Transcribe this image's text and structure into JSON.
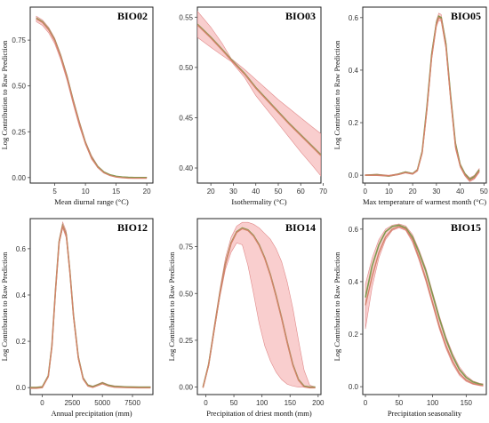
{
  "ylabel": "Log Contribution to Raw Prediction",
  "colors": {
    "band": "#f4a6a6",
    "curve_brown": "#d4826a",
    "curve_green": "#7f9a4e"
  },
  "chart_data": [
    {
      "type": "line",
      "title": "BIO02",
      "xlabel": "Mean diurnal range (°C)",
      "ylabel": "Log Contribution to Raw Prediction",
      "xlim": [
        1,
        21
      ],
      "ylim": [
        -0.03,
        0.93
      ],
      "xticks": [
        5,
        10,
        15,
        20
      ],
      "xtick_labels": [
        "5",
        "10",
        "15",
        "20"
      ],
      "yticks": [
        0,
        0.25,
        0.5,
        0.75
      ],
      "ytick_labels": [
        "0.00",
        "0.25",
        "0.50",
        "0.75"
      ],
      "series": [
        {
          "x": [
            2,
            3,
            4,
            5,
            6,
            7,
            8,
            9,
            10,
            11,
            12,
            13,
            14,
            15,
            16,
            17,
            18,
            19,
            20
          ],
          "values": [
            0.87,
            0.85,
            0.81,
            0.75,
            0.66,
            0.55,
            0.42,
            0.3,
            0.19,
            0.11,
            0.06,
            0.03,
            0.015,
            0.007,
            0.003,
            0.001,
            0,
            0,
            0
          ]
        }
      ],
      "band_upper": [
        0.88,
        0.86,
        0.82,
        0.76,
        0.67,
        0.56,
        0.43,
        0.31,
        0.2,
        0.12,
        0.065,
        0.033,
        0.017,
        0.008,
        0.004,
        0.002,
        0.001,
        0.001,
        0.001
      ],
      "band_lower": [
        0.85,
        0.83,
        0.79,
        0.73,
        0.64,
        0.53,
        0.4,
        0.28,
        0.18,
        0.1,
        0.055,
        0.027,
        0.013,
        0.006,
        0.002,
        0.001,
        0,
        0,
        0
      ]
    },
    {
      "type": "line",
      "title": "BIO03",
      "xlabel": "Isothermality (°C)",
      "ylabel": "",
      "xlim": [
        14,
        69
      ],
      "ylim": [
        0.385,
        0.56
      ],
      "xticks": [
        20,
        30,
        40,
        50,
        60,
        70
      ],
      "xtick_labels": [
        "20",
        "30",
        "40",
        "50",
        "60",
        "70"
      ],
      "yticks": [
        0.4,
        0.45,
        0.5,
        0.55
      ],
      "ytick_labels": [
        "0.40",
        "0.45",
        "0.50",
        "0.55"
      ],
      "series": [
        {
          "x": [
            14,
            20,
            25,
            29,
            35,
            40,
            45,
            50,
            55,
            60,
            65,
            69
          ],
          "values": [
            0.543,
            0.53,
            0.518,
            0.508,
            0.494,
            0.48,
            0.468,
            0.456,
            0.444,
            0.433,
            0.422,
            0.413
          ]
        }
      ],
      "band_upper": [
        0.556,
        0.54,
        0.524,
        0.509,
        0.498,
        0.488,
        0.478,
        0.468,
        0.459,
        0.45,
        0.441,
        0.434
      ],
      "band_lower": [
        0.53,
        0.52,
        0.512,
        0.506,
        0.49,
        0.472,
        0.458,
        0.444,
        0.43,
        0.416,
        0.403,
        0.392
      ]
    },
    {
      "type": "line",
      "title": "BIO05",
      "xlabel": "Max temperature of warmest month (°C)",
      "ylabel": "Log Contribution to Raw Prediction",
      "xlim": [
        -1,
        51
      ],
      "ylim": [
        -0.03,
        0.64
      ],
      "xticks": [
        0,
        10,
        20,
        30,
        40,
        50
      ],
      "xtick_labels": [
        "0",
        "10",
        "20",
        "30",
        "40",
        "50"
      ],
      "yticks": [
        0,
        0.2,
        0.4,
        0.6
      ],
      "ytick_labels": [
        "0.0",
        "0.2",
        "0.4",
        "0.6"
      ],
      "series": [
        {
          "x": [
            0,
            5,
            10,
            14,
            17,
            20,
            22,
            24,
            26,
            28,
            30,
            31,
            32,
            34,
            36,
            38,
            40,
            42,
            44,
            46,
            48
          ],
          "values": [
            0,
            0.002,
            -0.003,
            0.004,
            0.012,
            0.006,
            0.02,
            0.09,
            0.26,
            0.46,
            0.58,
            0.605,
            0.6,
            0.5,
            0.3,
            0.12,
            0.04,
            0.005,
            -0.015,
            -0.005,
            0.02
          ]
        },
        {
          "x": [
            0,
            5,
            10,
            14,
            17,
            20,
            22,
            24,
            26,
            28,
            30,
            31,
            32,
            34,
            36,
            38,
            40,
            42,
            44,
            46,
            48
          ],
          "values": [
            0,
            0,
            -0.002,
            0.003,
            0.01,
            0.005,
            0.018,
            0.085,
            0.25,
            0.45,
            0.575,
            0.6,
            0.595,
            0.49,
            0.29,
            0.11,
            0.035,
            0,
            -0.02,
            -0.01,
            0.015
          ]
        }
      ],
      "band_upper": [
        0.002,
        0.004,
        0,
        0.006,
        0.014,
        0.008,
        0.023,
        0.095,
        0.27,
        0.47,
        0.59,
        0.617,
        0.612,
        0.51,
        0.31,
        0.13,
        0.045,
        0.008,
        -0.01,
        0,
        0.025
      ],
      "band_lower": [
        -0.002,
        -0.002,
        -0.005,
        0.001,
        0.008,
        0.003,
        0.015,
        0.08,
        0.24,
        0.44,
        0.565,
        0.59,
        0.585,
        0.48,
        0.28,
        0.1,
        0.03,
        -0.003,
        -0.025,
        -0.015,
        0.01
      ]
    },
    {
      "type": "line",
      "title": "BIO12",
      "xlabel": "Annual precipitation (mm)",
      "ylabel": "Log Contribution to Raw Prediction",
      "xlim": [
        -1000,
        9200
      ],
      "ylim": [
        -0.03,
        0.73
      ],
      "xticks": [
        0,
        2500,
        5000,
        7500
      ],
      "xtick_labels": [
        "0",
        "2500",
        "5000",
        "7500"
      ],
      "yticks": [
        0,
        0.2,
        0.4,
        0.6
      ],
      "ytick_labels": [
        "0.0",
        "0.2",
        "0.4",
        "0.6"
      ],
      "series": [
        {
          "x": [
            -1000,
            -500,
            0,
            500,
            800,
            1100,
            1400,
            1700,
            2000,
            2300,
            2600,
            3000,
            3400,
            3800,
            4200,
            4600,
            5000,
            5500,
            6000,
            7000,
            8000,
            9000
          ],
          "values": [
            0,
            0,
            0.003,
            0.05,
            0.18,
            0.42,
            0.63,
            0.7,
            0.66,
            0.5,
            0.31,
            0.13,
            0.04,
            0.01,
            0.004,
            0.012,
            0.02,
            0.01,
            0.005,
            0.003,
            0.002,
            0.002
          ]
        }
      ],
      "band_upper": [
        0.003,
        0.003,
        0.006,
        0.055,
        0.19,
        0.43,
        0.64,
        0.715,
        0.675,
        0.515,
        0.32,
        0.14,
        0.045,
        0.013,
        0.007,
        0.015,
        0.024,
        0.013,
        0.008,
        0.005,
        0.004,
        0.004
      ],
      "band_lower": [
        -0.003,
        -0.003,
        0,
        0.045,
        0.17,
        0.41,
        0.62,
        0.69,
        0.645,
        0.49,
        0.3,
        0.12,
        0.035,
        0.007,
        0.001,
        0.009,
        0.016,
        0.007,
        0.002,
        0.001,
        0,
        0
      ]
    },
    {
      "type": "line",
      "title": "BIO14",
      "xlabel": "Precipitation of driest month (mm)",
      "ylabel": "Log Contribution to Raw Prediction",
      "xlim": [
        -15,
        205
      ],
      "ylim": [
        -0.04,
        0.9
      ],
      "xticks": [
        0,
        50,
        100,
        150,
        200
      ],
      "xtick_labels": [
        "0",
        "50",
        "100",
        "150",
        "200"
      ],
      "yticks": [
        0,
        0.25,
        0.5,
        0.75
      ],
      "ytick_labels": [
        "0.00",
        "0.25",
        "0.50",
        "0.75"
      ],
      "series": [
        {
          "x": [
            -5,
            5,
            15,
            25,
            35,
            45,
            55,
            65,
            75,
            85,
            95,
            105,
            115,
            125,
            135,
            145,
            155,
            165,
            175,
            185,
            195
          ],
          "values": [
            0,
            0.12,
            0.31,
            0.5,
            0.66,
            0.77,
            0.83,
            0.85,
            0.84,
            0.81,
            0.76,
            0.69,
            0.6,
            0.49,
            0.37,
            0.24,
            0.12,
            0.04,
            0.005,
            0,
            0
          ]
        }
      ],
      "band_upper": [
        0.002,
        0.13,
        0.33,
        0.52,
        0.69,
        0.8,
        0.86,
        0.88,
        0.88,
        0.87,
        0.85,
        0.82,
        0.79,
        0.74,
        0.67,
        0.56,
        0.42,
        0.25,
        0.09,
        0.01,
        0
      ],
      "band_lower": [
        0,
        0.11,
        0.3,
        0.48,
        0.63,
        0.72,
        0.77,
        0.76,
        0.65,
        0.5,
        0.34,
        0.22,
        0.14,
        0.08,
        0.04,
        0.015,
        0.005,
        0,
        0,
        0,
        0
      ]
    },
    {
      "type": "line",
      "title": "BIO15",
      "xlabel": "Precipitation seasonality",
      "ylabel": "Log Contribution to Raw Prediction",
      "xlim": [
        -4,
        180
      ],
      "ylim": [
        -0.03,
        0.64
      ],
      "xticks": [
        0,
        50,
        100,
        150
      ],
      "xtick_labels": [
        "0",
        "50",
        "100",
        "150"
      ],
      "yticks": [
        0,
        0.2,
        0.4,
        0.6
      ],
      "ytick_labels": [
        "0.0",
        "0.2",
        "0.4",
        "0.6"
      ],
      "series": [
        {
          "x": [
            0,
            10,
            20,
            30,
            40,
            50,
            60,
            70,
            80,
            90,
            100,
            110,
            120,
            130,
            140,
            150,
            160,
            170,
            175
          ],
          "values": [
            0.34,
            0.46,
            0.54,
            0.59,
            0.61,
            0.615,
            0.605,
            0.57,
            0.51,
            0.44,
            0.35,
            0.26,
            0.18,
            0.115,
            0.065,
            0.035,
            0.018,
            0.01,
            0.008
          ]
        },
        {
          "x": [
            0,
            10,
            20,
            30,
            40,
            50,
            60,
            70,
            80,
            90,
            100,
            110,
            120,
            130,
            140,
            150,
            160,
            170,
            175
          ],
          "values": [
            0.31,
            0.42,
            0.51,
            0.57,
            0.6,
            0.61,
            0.6,
            0.56,
            0.49,
            0.41,
            0.32,
            0.23,
            0.155,
            0.095,
            0.05,
            0.025,
            0.012,
            0.006,
            0.004
          ]
        }
      ],
      "band_upper": [
        0.39,
        0.49,
        0.56,
        0.6,
        0.615,
        0.62,
        0.612,
        0.58,
        0.52,
        0.45,
        0.36,
        0.27,
        0.19,
        0.125,
        0.075,
        0.042,
        0.022,
        0.013,
        0.011
      ],
      "band_lower": [
        0.22,
        0.38,
        0.49,
        0.56,
        0.595,
        0.605,
        0.595,
        0.55,
        0.48,
        0.4,
        0.31,
        0.22,
        0.145,
        0.085,
        0.043,
        0.02,
        0.009,
        0.004,
        0.002
      ]
    }
  ]
}
